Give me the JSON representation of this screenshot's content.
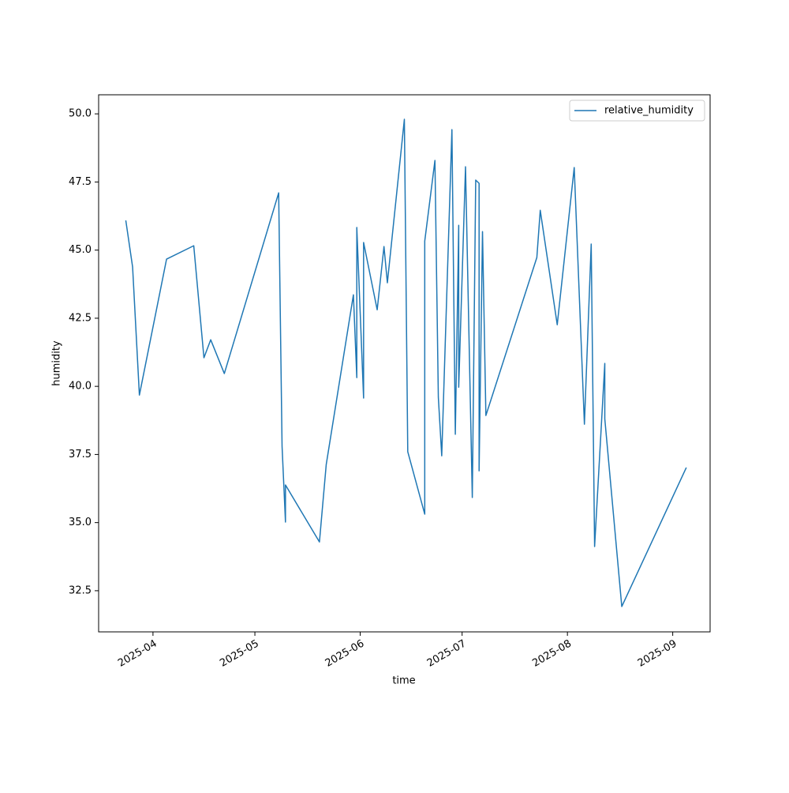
{
  "chart_data": {
    "type": "line",
    "x_label": "time",
    "y_label": "humidity",
    "x": [
      "2025-03-24",
      "2025-03-26",
      "2025-03-28",
      "2025-04-05",
      "2025-04-13",
      "2025-04-16",
      "2025-04-18",
      "2025-04-22",
      "2025-05-08",
      "2025-05-09",
      "2025-05-10",
      "2025-05-10",
      "2025-05-20",
      "2025-05-22",
      "2025-05-30",
      "2025-05-31",
      "2025-05-31",
      "2025-06-02",
      "2025-06-02",
      "2025-06-06",
      "2025-06-08",
      "2025-06-09",
      "2025-06-14",
      "2025-06-15",
      "2025-06-20",
      "2025-06-20",
      "2025-06-20",
      "2025-06-23",
      "2025-06-24",
      "2025-06-25",
      "2025-06-28",
      "2025-06-29",
      "2025-06-30",
      "2025-06-30",
      "2025-07-02",
      "2025-07-04",
      "2025-07-05",
      "2025-07-06",
      "2025-07-06",
      "2025-07-07",
      "2025-07-08",
      "2025-07-23",
      "2025-07-24",
      "2025-07-29",
      "2025-08-03",
      "2025-08-06",
      "2025-08-08",
      "2025-08-09",
      "2025-08-12",
      "2025-08-12",
      "2025-08-17",
      "2025-09-05"
    ],
    "series": [
      {
        "name": "relative_humidity",
        "color": "#1f77b4",
        "values": [
          46.09,
          44.38,
          39.68,
          44.67,
          45.16,
          41.05,
          41.71,
          40.47,
          47.1,
          37.8,
          35.02,
          36.38,
          34.29,
          37.13,
          43.36,
          40.32,
          45.83,
          39.57,
          45.28,
          42.81,
          45.13,
          43.8,
          49.8,
          37.6,
          35.31,
          42.0,
          45.33,
          48.29,
          39.6,
          37.45,
          49.42,
          38.24,
          45.91,
          39.97,
          48.06,
          35.92,
          47.57,
          47.45,
          36.9,
          45.68,
          38.93,
          44.73,
          46.46,
          42.26,
          48.03,
          38.61,
          45.22,
          34.12,
          40.84,
          38.81,
          31.92,
          37.02
        ]
      }
    ],
    "xlim": [
      "2025-03-16",
      "2025-09-12"
    ],
    "xticks": [
      {
        "value": "2025-04-01",
        "label": "2025-04"
      },
      {
        "value": "2025-05-01",
        "label": "2025-05"
      },
      {
        "value": "2025-06-01",
        "label": "2025-06"
      },
      {
        "value": "2025-07-01",
        "label": "2025-07"
      },
      {
        "value": "2025-08-01",
        "label": "2025-08"
      },
      {
        "value": "2025-09-01",
        "label": "2025-09"
      }
    ],
    "ylim": [
      30.99,
      50.7
    ],
    "yticks": [
      32.5,
      {
        "value": 35,
        "label": "35.0"
      },
      37.5,
      {
        "value": 40,
        "label": "40.0"
      },
      42.5,
      {
        "value": 45,
        "label": "45.0"
      },
      47.5,
      {
        "value": 50,
        "label": "50.0"
      }
    ],
    "grid": false,
    "legend": "upper right"
  }
}
